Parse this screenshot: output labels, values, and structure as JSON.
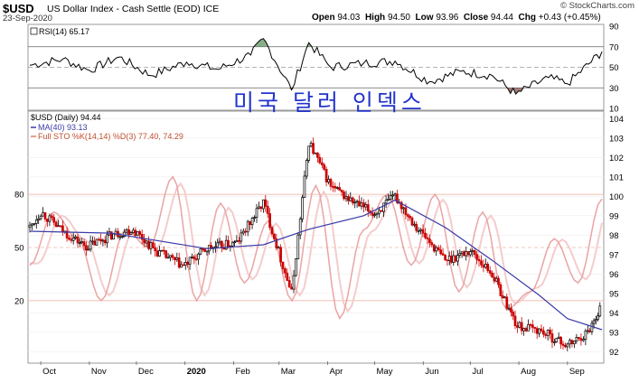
{
  "header": {
    "symbol": "$USD",
    "description": "US Dollar Index - Cash Settle (EOD)",
    "exchange": "ICE",
    "date": "23-Sep-2020",
    "open_label": "Open",
    "open": "94.03",
    "high_label": "High",
    "high": "94.50",
    "low_label": "Low",
    "low": "93.96",
    "close_label": "Close",
    "close": "94.44",
    "chg_label": "Chg",
    "chg": "+0.43 (+0.45%)",
    "credit": "© StockCharts.com"
  },
  "overlay_text": "미국 달러 인덱스",
  "colors": {
    "candles": "#cc0000",
    "candles_up": "#000000",
    "ma": "#3a3aa8",
    "sto_k": "#e8a8a8",
    "sto_d": "#f2c8c8",
    "rsi_line": "#000000",
    "rsi_over": "#5a8a5a",
    "rsi_under": "#8a5a5a",
    "korean_text": "#2233cc"
  },
  "chart_data": [
    {
      "type": "line",
      "panel": "RSI",
      "legend": "RSI(14) 65.17",
      "last_value": 65.17,
      "ylim": [
        10,
        90
      ],
      "yticks": [
        90,
        70,
        50,
        30,
        10
      ],
      "reference_lines": [
        70,
        50,
        30
      ],
      "x": [
        "2019-09-24",
        "2019-10-15",
        "2019-11-01",
        "2019-11-20",
        "2019-12-10",
        "2020-01-02",
        "2020-01-22",
        "2020-02-12",
        "2020-02-20",
        "2020-03-09",
        "2020-03-20",
        "2020-04-03",
        "2020-04-24",
        "2020-05-14",
        "2020-06-05",
        "2020-06-25",
        "2020-07-15",
        "2020-07-30",
        "2020-08-20",
        "2020-09-01",
        "2020-09-23"
      ],
      "values": [
        52,
        58,
        47,
        60,
        42,
        55,
        48,
        62,
        78,
        28,
        74,
        50,
        54,
        56,
        36,
        46,
        42,
        24,
        40,
        34,
        65.17
      ]
    },
    {
      "type": "line",
      "panel": "price",
      "legend": "$USD (Daily) 94.44",
      "ylim": [
        91.5,
        104.2
      ],
      "yticks": [
        92,
        93,
        94,
        95,
        96,
        97,
        98,
        99,
        100,
        101,
        102,
        103,
        104
      ],
      "xticks": [
        "Oct",
        "Nov",
        "Dec",
        "2020",
        "Feb",
        "Mar",
        "Apr",
        "May",
        "Jun",
        "Jul",
        "Aug",
        "Sep"
      ],
      "last_close": 94.44,
      "series": [
        {
          "name": "$USD (Daily) 94.44",
          "x": [
            "2019-09-24",
            "2019-10-01",
            "2019-10-15",
            "2019-10-30",
            "2019-11-15",
            "2019-11-29",
            "2019-12-13",
            "2019-12-31",
            "2020-01-15",
            "2020-02-03",
            "2020-02-20",
            "2020-03-09",
            "2020-03-20",
            "2020-04-03",
            "2020-04-17",
            "2020-05-01",
            "2020-05-14",
            "2020-05-29",
            "2020-06-15",
            "2020-07-01",
            "2020-07-15",
            "2020-07-31",
            "2020-08-14",
            "2020-09-01",
            "2020-09-14",
            "2020-09-23"
          ],
          "values": [
            98.4,
            99.2,
            98.2,
            97.4,
            98.0,
            98.3,
            97.2,
            96.4,
            97.3,
            97.6,
            99.7,
            95.0,
            102.8,
            100.5,
            99.7,
            99.1,
            100.0,
            98.3,
            96.7,
            97.2,
            96.0,
            93.3,
            93.1,
            92.3,
            93.0,
            94.44
          ]
        },
        {
          "name": "MA(40) 93.13",
          "x": [
            "2019-09-24",
            "2019-11-15",
            "2020-01-15",
            "2020-02-20",
            "2020-03-20",
            "2020-04-24",
            "2020-05-14",
            "2020-06-15",
            "2020-07-15",
            "2020-08-14",
            "2020-09-01",
            "2020-09-23"
          ],
          "values": [
            98.2,
            98.1,
            97.3,
            97.5,
            98.3,
            99.0,
            99.8,
            98.4,
            96.7,
            94.9,
            93.7,
            93.13
          ]
        }
      ],
      "overlay_indicator": {
        "name": "Full STO %K(14,14) %D(3) 77.40, 74.29",
        "k_last": 77.4,
        "d_last": 74.29,
        "scale_ticks": [
          80,
          50,
          20
        ],
        "k_values": [
          40,
          70,
          55,
          20,
          60,
          50,
          90,
          20,
          75,
          30,
          65,
          20,
          85,
          10,
          60,
          80,
          40,
          80,
          25,
          70,
          15,
          25,
          55,
          30,
          77.4
        ]
      }
    }
  ]
}
